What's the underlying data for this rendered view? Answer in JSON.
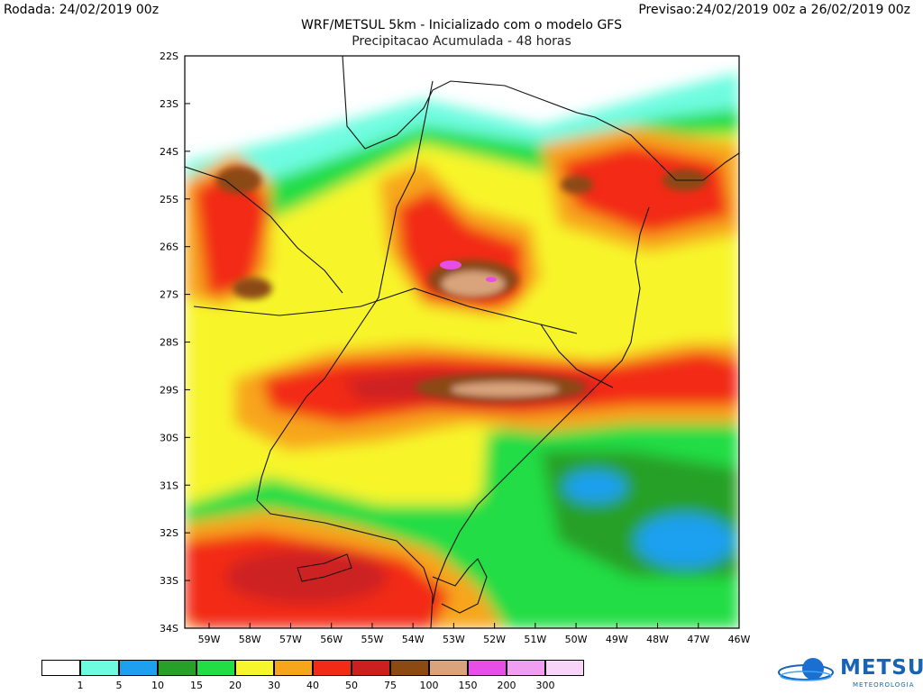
{
  "header": {
    "left": "Rodada: 24/02/2019 00z",
    "right": "Previsao:24/02/2019 00z a 26/02/2019 00z"
  },
  "title": {
    "line1": "WRF/METSUL 5km - Inicializado com o modelo GFS",
    "line2": "Precipitacao Acumulada - 48 horas"
  },
  "axes": {
    "latitudes": [
      "22S",
      "23S",
      "24S",
      "25S",
      "26S",
      "27S",
      "28S",
      "29S",
      "30S",
      "31S",
      "32S",
      "33S",
      "34S"
    ],
    "longitudes": [
      "59W",
      "58W",
      "57W",
      "56W",
      "55W",
      "54W",
      "53W",
      "52W",
      "51W",
      "50W",
      "49W",
      "48W",
      "47W",
      "46W"
    ]
  },
  "legend": {
    "colors": [
      "#ffffff",
      "#6efce0",
      "#1ea0f0",
      "#27a027",
      "#22dd44",
      "#f7f52b",
      "#f7a61b",
      "#f22a16",
      "#cc2020",
      "#8b4a12",
      "#d9a47c",
      "#e74ee8",
      "#ef9ef0",
      "#f8d4f8"
    ],
    "labels": [
      "1",
      "5",
      "10",
      "15",
      "20",
      "30",
      "40",
      "50",
      "75",
      "100",
      "150",
      "200",
      "300"
    ]
  },
  "logo": {
    "name": "METSUL",
    "subtitle": "METEOROLOGIA"
  }
}
